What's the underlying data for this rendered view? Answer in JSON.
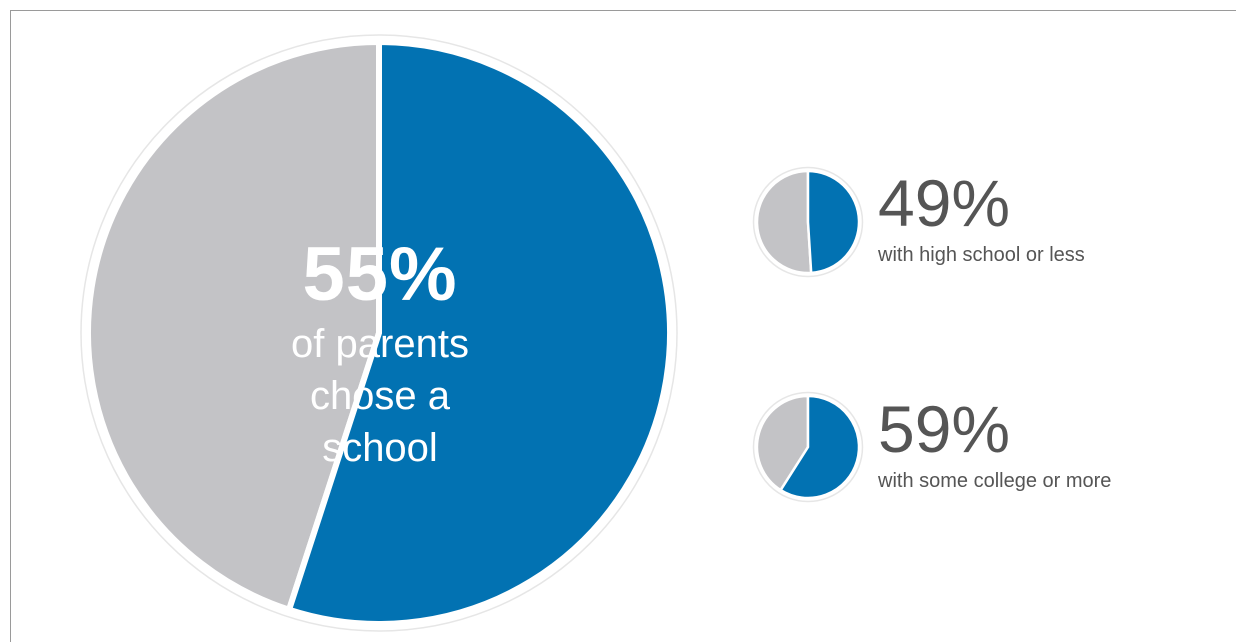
{
  "chart_data": [
    {
      "type": "pie",
      "values": [
        55,
        45
      ],
      "highlight_value": 55,
      "label_value": "55%",
      "caption_lines": [
        "of parents",
        "chose a",
        "school"
      ],
      "colors": {
        "highlight": "#0272b2",
        "rest": "#c3c3c6"
      }
    },
    {
      "type": "pie",
      "values": [
        49,
        51
      ],
      "highlight_value": 49,
      "label_value": "49%",
      "caption": "with high school or less",
      "colors": {
        "highlight": "#0272b2",
        "rest": "#c3c3c6"
      }
    },
    {
      "type": "pie",
      "values": [
        59,
        41
      ],
      "highlight_value": 59,
      "label_value": "59%",
      "caption": "with some college or more",
      "colors": {
        "highlight": "#0272b2",
        "rest": "#c3c3c6"
      }
    }
  ]
}
